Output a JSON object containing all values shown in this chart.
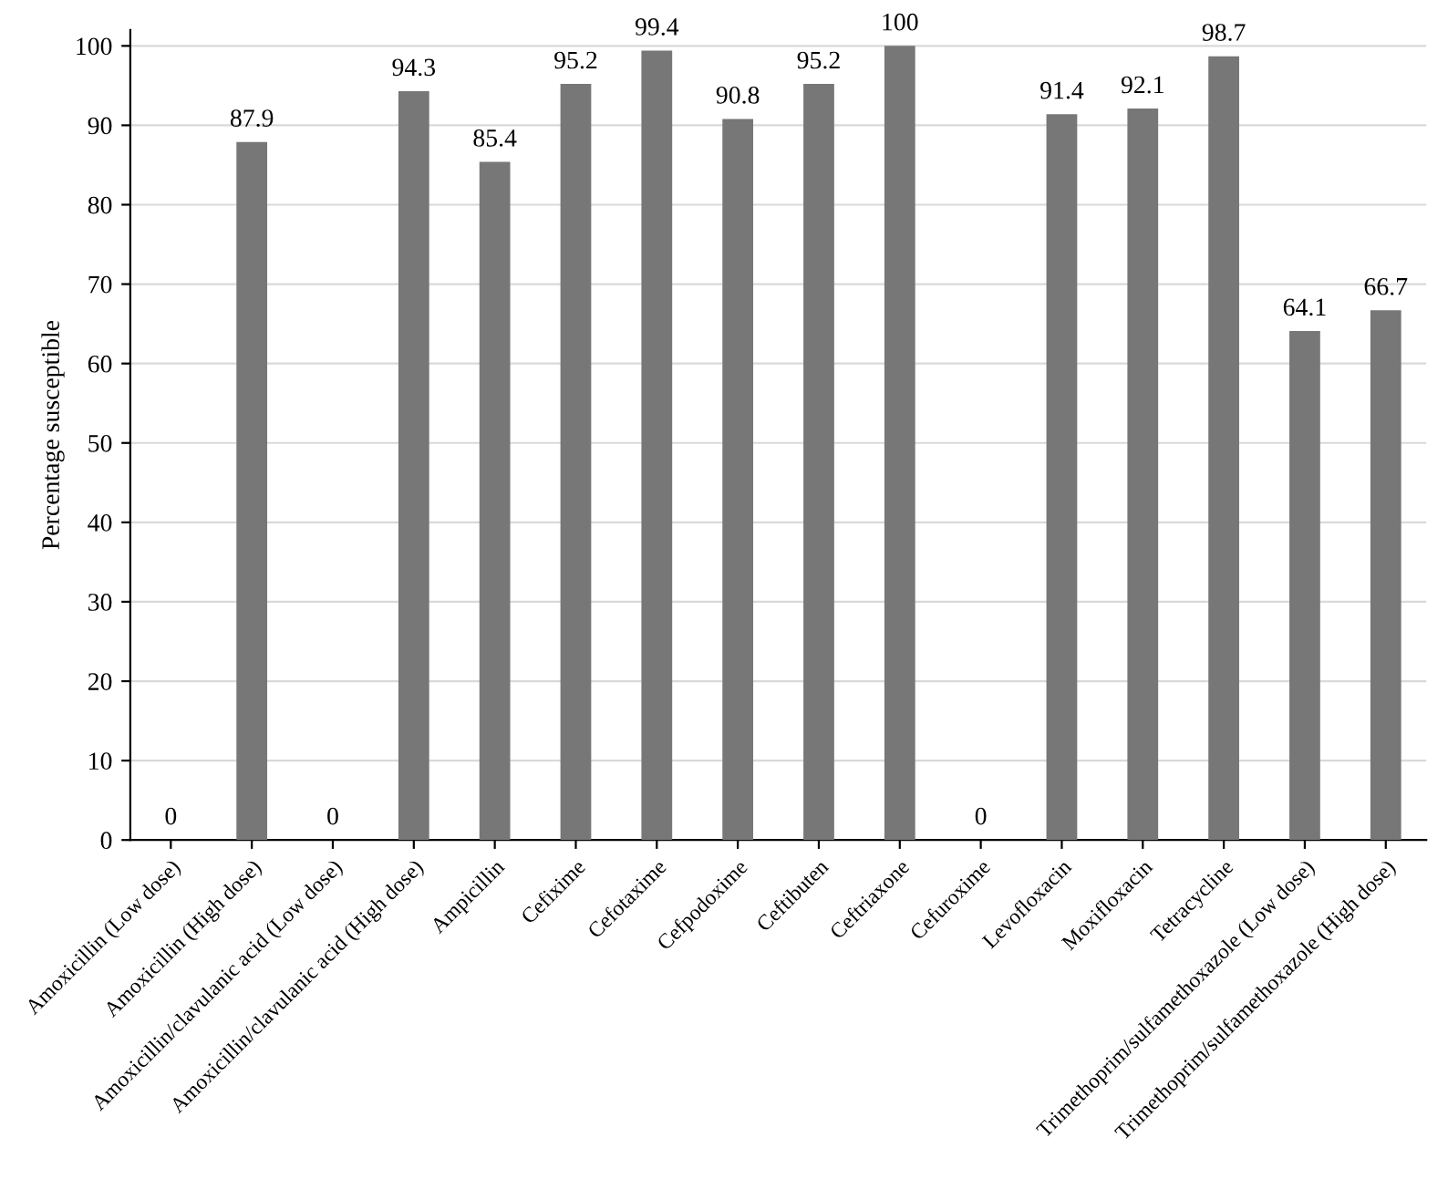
{
  "chart_data": {
    "type": "bar",
    "ylabel": "Percentage susceptible",
    "categories": [
      "Amoxicillin (Low dose)",
      "Amoxicillin (High dose)",
      "Amoxicillin/clavulanic acid (Low dose)",
      "Amoxicillin/clavulanic acid (High dose)",
      "Ampicillin",
      "Cefixime",
      "Cefotaxime",
      "Cefpodoxime",
      "Ceftibuten",
      "Ceftriaxone",
      "Cefuroxime",
      "Levofloxacin",
      "Moxifloxacin",
      "Tetracycline",
      "Trimethoprim/sulfamethoxazole (Low dose)",
      "Trimethoprim/sulfamethoxazole (High dose)"
    ],
    "values": [
      0,
      87.9,
      0,
      94.3,
      85.4,
      95.2,
      99.4,
      90.8,
      95.2,
      100,
      0,
      91.4,
      92.1,
      98.7,
      64.1,
      66.7
    ],
    "color": "#777777",
    "ylim": [
      0,
      102
    ],
    "yticks": [
      0,
      10,
      20,
      30,
      40,
      50,
      60,
      70,
      80,
      90,
      100
    ],
    "grid": "y",
    "data_labels": true
  }
}
